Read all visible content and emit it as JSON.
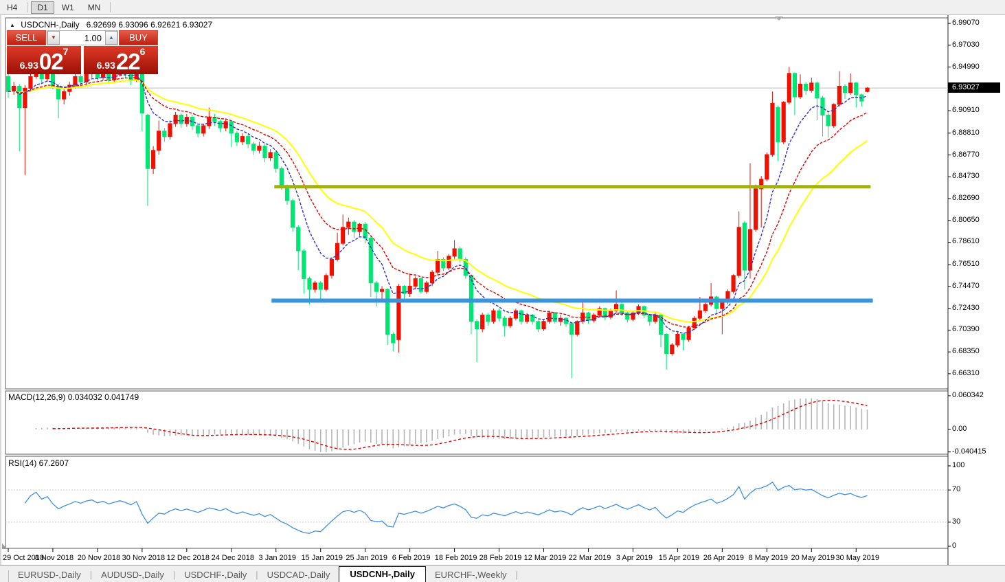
{
  "toolbar": {
    "timeframes": [
      {
        "label": "H4",
        "active": false
      },
      {
        "label": "D1",
        "active": true
      },
      {
        "label": "W1",
        "active": false
      },
      {
        "label": "MN",
        "active": false
      }
    ]
  },
  "chart": {
    "title_symbol": "USDCNH-,Daily",
    "ohlc_text": "6.92699 6.93096 6.92621 6.93027"
  },
  "trade_panel": {
    "sell_label": "SELL",
    "buy_label": "BUY",
    "volume": "1.00",
    "sell_small": "6.93",
    "sell_big": "02",
    "sell_sup": "7",
    "buy_small": "6.93",
    "buy_big": "22",
    "buy_sup": "6"
  },
  "indicators": {
    "macd_label": "MACD(12,26,9) 0.034032 0.041749",
    "rsi_label": "RSI(14) 67.2607"
  },
  "price_axis": {
    "labels": [
      "6.99070",
      "6.97030",
      "6.94990",
      "6.90910",
      "6.88810",
      "6.86770",
      "6.84730",
      "6.82690",
      "6.80650",
      "6.78610",
      "6.76510",
      "6.74470",
      "6.72430",
      "6.70390",
      "6.68350",
      "6.66310"
    ],
    "current": "6.93027"
  },
  "macd_axis": {
    "labels": [
      {
        "text": "0.060342",
        "value": 0.060342
      },
      {
        "text": "0.00",
        "value": 0
      },
      {
        "text": "-0.040415",
        "value": -0.040415
      }
    ]
  },
  "rsi_axis": {
    "labels": [
      {
        "text": "100",
        "value": 100
      },
      {
        "text": "70",
        "value": 70
      },
      {
        "text": "30",
        "value": 30
      },
      {
        "text": "0",
        "value": 0
      }
    ]
  },
  "x_axis": {
    "labels": [
      "29 Oct 2018",
      "8 Nov 2018",
      "20 Nov 2018",
      "30 Nov 2018",
      "12 Dec 2018",
      "24 Dec 2018",
      "3 Jan 2019",
      "15 Jan 2019",
      "25 Jan 2019",
      "6 Feb 2019",
      "18 Feb 2019",
      "28 Feb 2019",
      "12 Mar 2019",
      "22 Mar 2019",
      "3 Apr 2019",
      "15 Apr 2019",
      "26 Apr 2019",
      "8 May 2019",
      "20 May 2019",
      "30 May 2019"
    ]
  },
  "tabs": [
    {
      "label": "EURUSD-,Daily",
      "active": false
    },
    {
      "label": "AUDUSD-,Daily",
      "active": false
    },
    {
      "label": "USDCHF-,Daily",
      "active": false
    },
    {
      "label": "USDCAD-,Daily",
      "active": false
    },
    {
      "label": "USDCNH-,Daily",
      "active": true
    },
    {
      "label": "EURCHF-,Weekly",
      "active": false
    }
  ],
  "colors": {
    "bull_candle": "#f01000",
    "bear_candle": "#00e673",
    "ma_fast": "#3232cd",
    "ma_mid": "#e00000",
    "ma_slow": "#ffff00",
    "hline_olive": "#a2b400",
    "hline_blue": "#3a93dd",
    "current_price_line": "#c0c0c0",
    "macd_histogram": "#b4b4b4",
    "macd_signal": "#e00000",
    "rsi_line": "#3f8fde",
    "rsi_levels": "#cccccc",
    "pane_border": "#5a5a5a"
  },
  "chart_data": [
    {
      "type": "candlestick",
      "title": "USDCNH-,Daily",
      "open": 6.92699,
      "high": 6.93096,
      "low": 6.92621,
      "close": 6.93027,
      "ylim": [
        6.6489,
        6.9959
      ],
      "bars_per_tick": 8,
      "up_color": "#f01000",
      "down_color": "#00e673",
      "overlays": [
        {
          "name": "ma-fast",
          "color": "#3232cd",
          "period": 8,
          "dash": "4 2"
        },
        {
          "name": "ma-mid",
          "color": "#e00000",
          "period": 16,
          "dash": "4 2"
        },
        {
          "name": "ma-slow",
          "color": "#ffff00",
          "period": 26,
          "dash": ""
        }
      ],
      "hlines": [
        {
          "value": 6.838,
          "color": "#a2b400",
          "width": 5,
          "from_bar": 47.7,
          "to_bar": 154.6
        },
        {
          "value": 6.7315,
          "color": "#3a93dd",
          "width": 6,
          "from_bar": 47.2,
          "to_bar": 155.0
        }
      ],
      "current_price": 6.93027,
      "candles": [
        [
          6.941,
          6.9455,
          6.921,
          6.927
        ],
        [
          6.927,
          6.936,
          6.924,
          6.932
        ],
        [
          6.932,
          6.934,
          6.871,
          6.912
        ],
        [
          6.912,
          6.933,
          6.849,
          6.93
        ],
        [
          6.93,
          6.945,
          6.928,
          6.941
        ],
        [
          6.941,
          6.953,
          6.939,
          6.948
        ],
        [
          6.948,
          6.95,
          6.935,
          6.939
        ],
        [
          6.939,
          6.948,
          6.936,
          6.945
        ],
        [
          6.945,
          6.947,
          6.929,
          6.932
        ],
        [
          6.932,
          6.934,
          6.902,
          6.92
        ],
        [
          6.92,
          6.929,
          6.915,
          6.927
        ],
        [
          6.927,
          6.936,
          6.923,
          6.933
        ],
        [
          6.933,
          6.944,
          6.93,
          6.941
        ],
        [
          6.941,
          6.943,
          6.932,
          6.936
        ],
        [
          6.936,
          6.955,
          6.934,
          6.944
        ],
        [
          6.944,
          6.951,
          6.94,
          6.948
        ],
        [
          6.948,
          6.95,
          6.937,
          6.94
        ],
        [
          6.94,
          6.948,
          6.938,
          6.945
        ],
        [
          6.945,
          6.947,
          6.934,
          6.938
        ],
        [
          6.938,
          6.946,
          6.935,
          6.943
        ],
        [
          6.943,
          6.951,
          6.941,
          6.948
        ],
        [
          6.948,
          6.95,
          6.94,
          6.944
        ],
        [
          6.944,
          6.946,
          6.933,
          6.938
        ],
        [
          6.938,
          6.949,
          6.936,
          6.947
        ],
        [
          6.947,
          6.948,
          6.89,
          6.907
        ],
        [
          6.905,
          6.906,
          6.82,
          6.855
        ],
        [
          6.855,
          6.876,
          6.85,
          6.872
        ],
        [
          6.872,
          6.9,
          6.868,
          6.89
        ],
        [
          6.89,
          6.893,
          6.88,
          6.885
        ],
        [
          6.885,
          6.9,
          6.882,
          6.897
        ],
        [
          6.897,
          6.908,
          6.894,
          6.905
        ],
        [
          6.905,
          6.907,
          6.893,
          6.897
        ],
        [
          6.897,
          6.906,
          6.894,
          6.903
        ],
        [
          6.903,
          6.905,
          6.891,
          6.895
        ],
        [
          6.895,
          6.897,
          6.884,
          6.888
        ],
        [
          6.888,
          6.897,
          6.885,
          6.895
        ],
        [
          6.895,
          6.912,
          6.892,
          6.903
        ],
        [
          6.903,
          6.906,
          6.895,
          6.899
        ],
        [
          6.899,
          6.901,
          6.889,
          6.893
        ],
        [
          6.893,
          6.901,
          6.89,
          6.899
        ],
        [
          6.899,
          6.9,
          6.875,
          6.888
        ],
        [
          6.888,
          6.89,
          6.876,
          6.88
        ],
        [
          6.88,
          6.888,
          6.877,
          6.885
        ],
        [
          6.885,
          6.887,
          6.874,
          6.878
        ],
        [
          6.878,
          6.88,
          6.868,
          6.872
        ],
        [
          6.872,
          6.88,
          6.869,
          6.876
        ],
        [
          6.876,
          6.878,
          6.861,
          6.865
        ],
        [
          6.865,
          6.873,
          6.862,
          6.87
        ],
        [
          6.87,
          6.872,
          6.851,
          6.855
        ],
        [
          6.855,
          6.857,
          6.835,
          6.838
        ],
        [
          6.838,
          6.84,
          6.821,
          6.825
        ],
        [
          6.825,
          6.827,
          6.796,
          6.8
        ],
        [
          6.8,
          6.802,
          6.76,
          6.778
        ],
        [
          6.778,
          6.78,
          6.738,
          6.752
        ],
        [
          6.752,
          6.754,
          6.728,
          6.742
        ],
        [
          6.742,
          6.75,
          6.739,
          6.748
        ],
        [
          6.748,
          6.75,
          6.73,
          6.742
        ],
        [
          6.742,
          6.757,
          6.74,
          6.755
        ],
        [
          6.755,
          6.772,
          6.752,
          6.77
        ],
        [
          6.77,
          6.795,
          6.768,
          6.785
        ],
        [
          6.785,
          6.812,
          6.783,
          6.8
        ],
        [
          6.8,
          6.809,
          6.793,
          6.805
        ],
        [
          6.805,
          6.807,
          6.79,
          6.796
        ],
        [
          6.796,
          6.804,
          6.792,
          6.803
        ],
        [
          6.803,
          6.805,
          6.785,
          6.79
        ],
        [
          6.79,
          6.792,
          6.735,
          6.748
        ],
        [
          6.748,
          6.75,
          6.726,
          6.74
        ],
        [
          6.74,
          6.745,
          6.733,
          6.742
        ],
        [
          6.742,
          6.743,
          6.69,
          6.7
        ],
        [
          6.7,
          6.702,
          6.684,
          6.692
        ],
        [
          6.695,
          6.747,
          6.683,
          6.745
        ],
        [
          6.745,
          6.746,
          6.733,
          6.738
        ],
        [
          6.738,
          6.757,
          6.735,
          6.745
        ],
        [
          6.745,
          6.754,
          6.742,
          6.752
        ],
        [
          6.752,
          6.753,
          6.738,
          6.74
        ],
        [
          6.74,
          6.75,
          6.738,
          6.748
        ],
        [
          6.748,
          6.76,
          6.745,
          6.758
        ],
        [
          6.758,
          6.778,
          6.755,
          6.77
        ],
        [
          6.77,
          6.772,
          6.759,
          6.762
        ],
        [
          6.762,
          6.775,
          6.76,
          6.773
        ],
        [
          6.773,
          6.788,
          6.77,
          6.78
        ],
        [
          6.78,
          6.782,
          6.767,
          6.77
        ],
        [
          6.77,
          6.772,
          6.752,
          6.755
        ],
        [
          6.755,
          6.756,
          6.7,
          6.712
        ],
        [
          6.712,
          6.714,
          6.674,
          6.705
        ],
        [
          6.705,
          6.72,
          6.702,
          6.718
        ],
        [
          6.718,
          6.72,
          6.708,
          6.712
        ],
        [
          6.712,
          6.724,
          6.71,
          6.722
        ],
        [
          6.722,
          6.724,
          6.712,
          6.715
        ],
        [
          6.715,
          6.717,
          6.698,
          6.708
        ],
        [
          6.708,
          6.717,
          6.706,
          6.715
        ],
        [
          6.715,
          6.724,
          6.713,
          6.722
        ],
        [
          6.722,
          6.723,
          6.709,
          6.712
        ],
        [
          6.712,
          6.72,
          6.71,
          6.718
        ],
        [
          6.718,
          6.719,
          6.709,
          6.712
        ],
        [
          6.712,
          6.713,
          6.702,
          6.705
        ],
        [
          6.705,
          6.714,
          6.703,
          6.712
        ],
        [
          6.712,
          6.722,
          6.71,
          6.72
        ],
        [
          6.72,
          6.721,
          6.71,
          6.712
        ],
        [
          6.712,
          6.718,
          6.708,
          6.715
        ],
        [
          6.715,
          6.716,
          6.707,
          6.71
        ],
        [
          6.71,
          6.711,
          6.659,
          6.7
        ],
        [
          6.7,
          6.713,
          6.698,
          6.712
        ],
        [
          6.712,
          6.73,
          6.71,
          6.72
        ],
        [
          6.72,
          6.721,
          6.71,
          6.713
        ],
        [
          6.713,
          6.72,
          6.711,
          6.718
        ],
        [
          6.718,
          6.726,
          6.716,
          6.724
        ],
        [
          6.724,
          6.725,
          6.713,
          6.716
        ],
        [
          6.716,
          6.724,
          6.714,
          6.722
        ],
        [
          6.722,
          6.741,
          6.72,
          6.728
        ],
        [
          6.728,
          6.73,
          6.717,
          6.72
        ],
        [
          6.72,
          6.721,
          6.711,
          6.714
        ],
        [
          6.714,
          6.722,
          6.712,
          6.72
        ],
        [
          6.72,
          6.728,
          6.718,
          6.726
        ],
        [
          6.726,
          6.727,
          6.715,
          6.718
        ],
        [
          6.718,
          6.719,
          6.708,
          6.712
        ],
        [
          6.712,
          6.72,
          6.71,
          6.718
        ],
        [
          6.718,
          6.719,
          6.688,
          6.7
        ],
        [
          6.7,
          6.701,
          6.667,
          6.682
        ],
        [
          6.682,
          6.692,
          6.68,
          6.69
        ],
        [
          6.69,
          6.702,
          6.688,
          6.7
        ],
        [
          6.7,
          6.701,
          6.685,
          6.695
        ],
        [
          6.695,
          6.708,
          6.693,
          6.706
        ],
        [
          6.706,
          6.717,
          6.704,
          6.715
        ],
        [
          6.715,
          6.735,
          6.713,
          6.722
        ],
        [
          6.722,
          6.73,
          6.72,
          6.728
        ],
        [
          6.728,
          6.748,
          6.726,
          6.735
        ],
        [
          6.735,
          6.736,
          6.718,
          6.724
        ],
        [
          6.724,
          6.732,
          6.7,
          6.73
        ],
        [
          6.73,
          6.742,
          6.728,
          6.74
        ],
        [
          6.74,
          6.756,
          6.738,
          6.755
        ],
        [
          6.755,
          6.815,
          6.753,
          6.8
        ],
        [
          6.804,
          6.806,
          6.742,
          6.76
        ],
        [
          6.76,
          6.86,
          6.752,
          6.798
        ],
        [
          6.798,
          6.84,
          6.796,
          6.836
        ],
        [
          6.836,
          6.848,
          6.8,
          6.845
        ],
        [
          6.845,
          6.87,
          6.843,
          6.868
        ],
        [
          6.868,
          6.927,
          6.866,
          6.916
        ],
        [
          6.912,
          6.914,
          6.862,
          6.88
        ],
        [
          6.88,
          6.918,
          6.878,
          6.917
        ],
        [
          6.917,
          6.95,
          6.915,
          6.944
        ],
        [
          6.944,
          6.945,
          6.905,
          6.922
        ],
        [
          6.922,
          6.943,
          6.92,
          6.934
        ],
        [
          6.934,
          6.936,
          6.924,
          6.928
        ],
        [
          6.928,
          6.94,
          6.926,
          6.935
        ],
        [
          6.935,
          6.936,
          6.9,
          6.921
        ],
        [
          6.921,
          6.923,
          6.885,
          6.905
        ],
        [
          6.905,
          6.907,
          6.884,
          6.895
        ],
        [
          6.895,
          6.916,
          6.893,
          6.915
        ],
        [
          6.915,
          6.946,
          6.913,
          6.932
        ],
        [
          6.932,
          6.934,
          6.92,
          6.926
        ],
        [
          6.926,
          6.944,
          6.924,
          6.935
        ],
        [
          6.935,
          6.936,
          6.912,
          6.924
        ],
        [
          6.924,
          6.925,
          6.913,
          6.918
        ],
        [
          6.927,
          6.931,
          6.9262,
          6.9303
        ]
      ]
    },
    {
      "type": "macd",
      "label": "MACD(12,26,9)",
      "macd_value": 0.034032,
      "signal_value": 0.041749,
      "ylim": [
        -0.0445,
        0.0689
      ],
      "histogram_color": "#b4b4b4",
      "signal_color": "#e00000"
    },
    {
      "type": "rsi",
      "label": "RSI(14)",
      "value": 67.2607,
      "period": 14,
      "levels": [
        30,
        70
      ],
      "ylim": [
        0,
        100
      ],
      "line_color": "#3f8fde"
    }
  ]
}
